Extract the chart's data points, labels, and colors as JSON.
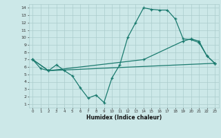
{
  "xlabel": "Humidex (Indice chaleur)",
  "background_color": "#cce8e8",
  "grid_color": "#aacccc",
  "line_color": "#1a7a6e",
  "xlim": [
    -0.5,
    23.5
  ],
  "ylim": [
    0.5,
    14.5
  ],
  "xticks": [
    0,
    1,
    2,
    3,
    4,
    5,
    6,
    7,
    8,
    9,
    10,
    11,
    12,
    13,
    14,
    15,
    16,
    17,
    18,
    19,
    20,
    21,
    22,
    23
  ],
  "yticks": [
    1,
    2,
    3,
    4,
    5,
    6,
    7,
    8,
    9,
    10,
    11,
    12,
    13,
    14
  ],
  "line1_x": [
    0,
    1,
    2,
    3,
    4,
    5,
    6,
    7,
    8,
    9,
    10,
    11,
    12,
    13,
    14,
    15,
    16,
    17,
    18,
    19,
    20,
    21,
    22,
    23
  ],
  "line1_y": [
    7.0,
    5.8,
    5.5,
    6.3,
    5.5,
    4.8,
    3.2,
    1.8,
    2.2,
    1.2,
    4.5,
    6.3,
    10.0,
    12.0,
    14.0,
    13.8,
    13.7,
    13.7,
    12.5,
    9.8,
    9.7,
    9.3,
    7.5,
    6.5
  ],
  "line2_x": [
    0,
    2,
    14,
    19,
    20,
    21,
    22,
    23
  ],
  "line2_y": [
    7.0,
    5.5,
    7.0,
    9.5,
    9.8,
    9.5,
    7.5,
    6.5
  ],
  "line3_x": [
    0,
    2,
    23
  ],
  "line3_y": [
    7.0,
    5.5,
    6.5
  ]
}
